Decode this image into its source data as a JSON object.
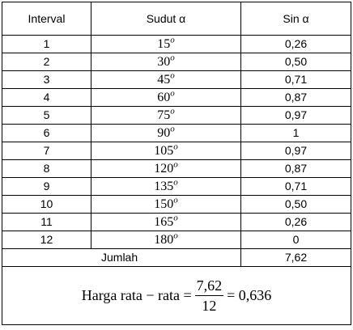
{
  "table": {
    "header": [
      "Interval",
      "Sudut α",
      "Sin α"
    ],
    "angle_sup": "o",
    "rows": [
      [
        "1",
        "15",
        "0,26"
      ],
      [
        "2",
        "30",
        "0,50"
      ],
      [
        "3",
        "45",
        "0,71"
      ],
      [
        "4",
        "60",
        "0,87"
      ],
      [
        "5",
        "75",
        "0,97"
      ],
      [
        "6",
        "90",
        "1"
      ],
      [
        "7",
        "105",
        "0,97"
      ],
      [
        "8",
        "120",
        "0,87"
      ],
      [
        "9",
        "135",
        "0,71"
      ],
      [
        "10",
        "150",
        "0,50"
      ],
      [
        "11",
        "165",
        "0,26"
      ],
      [
        "12",
        "180",
        "0"
      ]
    ],
    "total_label": "Jumlah",
    "total_value": "7,62"
  },
  "formula": {
    "lhs": "Harga rata − rata =",
    "numerator": "7,62",
    "denominator": "12",
    "result": "= 0,636"
  }
}
